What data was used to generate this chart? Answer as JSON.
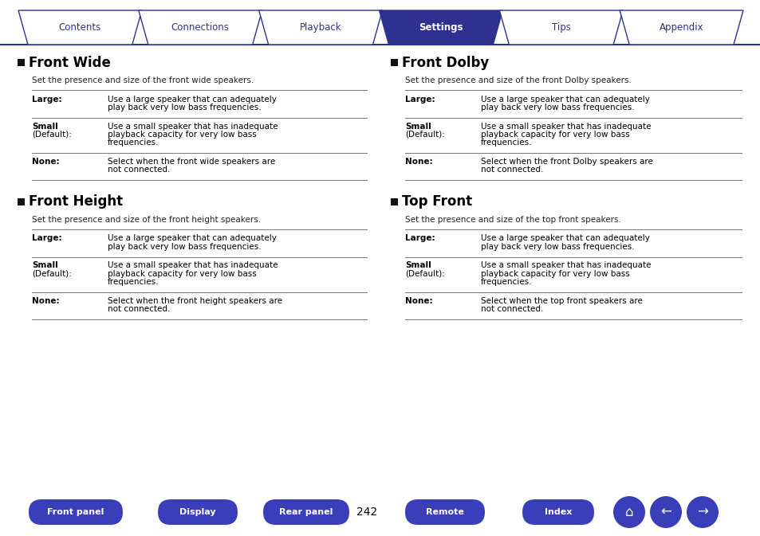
{
  "bg_color": "#ffffff",
  "tab_color_active": "#2e318f",
  "tab_color_inactive": "#ffffff",
  "tab_text_color_active": "#ffffff",
  "tab_text_color_inactive": "#2e318f",
  "tab_border_color": "#2e318f",
  "tabs": [
    "Contents",
    "Connections",
    "Playback",
    "Settings",
    "Tips",
    "Appendix"
  ],
  "active_tab": "Settings",
  "bottom_btn_color": "#3a3eb8",
  "bottom_btn_text": [
    "Front panel",
    "Display",
    "Rear panel",
    "Remote",
    "Index"
  ],
  "page_number": "242",
  "sections": [
    {
      "title": "Front Wide",
      "subtitle": "Set the presence and size of the front wide speakers.",
      "rows": [
        {
          "label": "Large:",
          "bold": true,
          "label2": "",
          "desc": "Use a large speaker that can adequately\nplay back very low bass frequencies."
        },
        {
          "label": "Small",
          "bold": true,
          "label2": "(Default):",
          "desc": "Use a small speaker that has inadequate\nplayback capacity for very low bass\nfrequencies."
        },
        {
          "label": "None:",
          "bold": true,
          "label2": "",
          "desc": "Select when the front wide speakers are\nnot connected."
        }
      ]
    },
    {
      "title": "Front Height",
      "subtitle": "Set the presence and size of the front height speakers.",
      "rows": [
        {
          "label": "Large:",
          "bold": true,
          "label2": "",
          "desc": "Use a large speaker that can adequately\nplay back very low bass frequencies."
        },
        {
          "label": "Small",
          "bold": true,
          "label2": "(Default):",
          "desc": "Use a small speaker that has inadequate\nplayback capacity for very low bass\nfrequencies."
        },
        {
          "label": "None:",
          "bold": true,
          "label2": "",
          "desc": "Select when the front height speakers are\nnot connected."
        }
      ]
    },
    {
      "title": "Front Dolby",
      "subtitle": "Set the presence and size of the front Dolby speakers.",
      "rows": [
        {
          "label": "Large:",
          "bold": true,
          "label2": "",
          "desc": "Use a large speaker that can adequately\nplay back very low bass frequencies."
        },
        {
          "label": "Small",
          "bold": true,
          "label2": "(Default):",
          "desc": "Use a small speaker that has inadequate\nplayback capacity for very low bass\nfrequencies."
        },
        {
          "label": "None:",
          "bold": true,
          "label2": "",
          "desc": "Select when the front Dolby speakers are\nnot connected."
        }
      ]
    },
    {
      "title": "Top Front",
      "subtitle": "Set the presence and size of the top front speakers.",
      "rows": [
        {
          "label": "Large:",
          "bold": true,
          "label2": "",
          "desc": "Use a large speaker that can adequately\nplay back very low bass frequencies."
        },
        {
          "label": "Small",
          "bold": true,
          "label2": "(Default):",
          "desc": "Use a small speaker that has inadequate\nplayback capacity for very low bass\nfrequencies."
        },
        {
          "label": "None:",
          "bold": true,
          "label2": "",
          "desc": "Select when the top front speakers are\nnot connected."
        }
      ]
    }
  ]
}
